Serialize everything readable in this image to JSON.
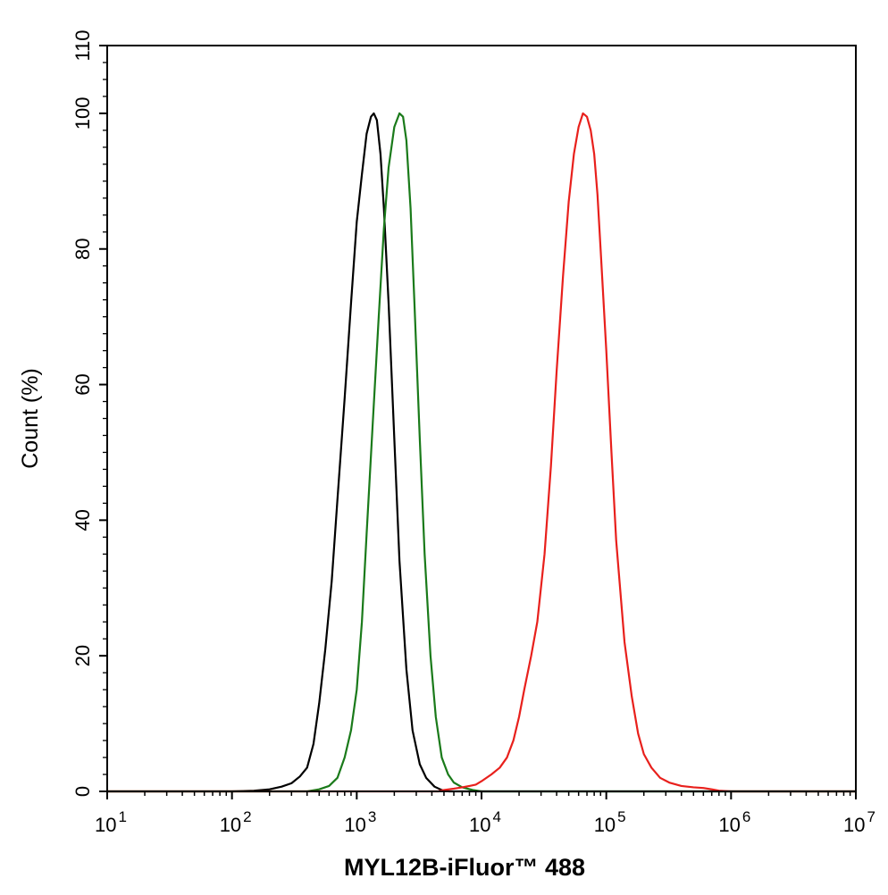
{
  "chart_data": {
    "type": "line",
    "title": "",
    "xlabel": "MYL12B-iFluor™ 488",
    "ylabel": "Count  (%)",
    "xscale": "log",
    "xlim": [
      10,
      10000000
    ],
    "ylim": [
      0,
      110
    ],
    "grid": false,
    "legend": "none",
    "x_ticks": [
      {
        "value": 10,
        "base": "10",
        "exp": "1"
      },
      {
        "value": 100,
        "base": "10",
        "exp": "2"
      },
      {
        "value": 1000,
        "base": "10",
        "exp": "3"
      },
      {
        "value": 10000,
        "base": "10",
        "exp": "4"
      },
      {
        "value": 100000,
        "base": "10",
        "exp": "5"
      },
      {
        "value": 1000000,
        "base": "10",
        "exp": "6"
      },
      {
        "value": 10000000,
        "base": "10",
        "exp": "7"
      }
    ],
    "y_ticks": [
      0,
      20,
      40,
      60,
      80,
      100,
      110
    ],
    "series": [
      {
        "color": "#000000",
        "points": [
          [
            10,
            0
          ],
          [
            100,
            0
          ],
          [
            150,
            0.1
          ],
          [
            200,
            0.3
          ],
          [
            250,
            0.7
          ],
          [
            300,
            1.2
          ],
          [
            350,
            2.2
          ],
          [
            400,
            3.5
          ],
          [
            450,
            7
          ],
          [
            500,
            13
          ],
          [
            560,
            21
          ],
          [
            630,
            31
          ],
          [
            700,
            43
          ],
          [
            800,
            58
          ],
          [
            900,
            72
          ],
          [
            1000,
            84
          ],
          [
            1100,
            91
          ],
          [
            1200,
            97
          ],
          [
            1300,
            99.5
          ],
          [
            1370,
            100
          ],
          [
            1450,
            99
          ],
          [
            1550,
            94
          ],
          [
            1650,
            86
          ],
          [
            1800,
            72
          ],
          [
            2000,
            52
          ],
          [
            2200,
            34
          ],
          [
            2500,
            18
          ],
          [
            2800,
            9
          ],
          [
            3200,
            4
          ],
          [
            3600,
            2
          ],
          [
            4200,
            0.7
          ],
          [
            4800,
            0.2
          ],
          [
            5500,
            0
          ],
          [
            10000000,
            0
          ]
        ]
      },
      {
        "color": "#1a7a1a",
        "points": [
          [
            10,
            0
          ],
          [
            400,
            0
          ],
          [
            500,
            0.3
          ],
          [
            600,
            0.8
          ],
          [
            700,
            2
          ],
          [
            800,
            5
          ],
          [
            900,
            9
          ],
          [
            1000,
            15
          ],
          [
            1100,
            25
          ],
          [
            1200,
            38
          ],
          [
            1350,
            55
          ],
          [
            1500,
            70
          ],
          [
            1650,
            83
          ],
          [
            1800,
            92
          ],
          [
            2000,
            98
          ],
          [
            2200,
            100
          ],
          [
            2350,
            99.5
          ],
          [
            2500,
            96
          ],
          [
            2700,
            86
          ],
          [
            2900,
            72
          ],
          [
            3200,
            52
          ],
          [
            3500,
            35
          ],
          [
            3900,
            20
          ],
          [
            4300,
            11
          ],
          [
            4800,
            5
          ],
          [
            5400,
            2.5
          ],
          [
            6000,
            1.3
          ],
          [
            7000,
            0.6
          ],
          [
            8500,
            0.2
          ],
          [
            10000,
            0
          ],
          [
            10000000,
            0
          ]
        ]
      },
      {
        "color": "#e8201c",
        "points": [
          [
            10,
            0
          ],
          [
            4500,
            0
          ],
          [
            5000,
            0.2
          ],
          [
            6000,
            0.4
          ],
          [
            7000,
            0.6
          ],
          [
            8000,
            0.8
          ],
          [
            9000,
            1.0
          ],
          [
            10000,
            1.5
          ],
          [
            12000,
            2.5
          ],
          [
            14000,
            3.5
          ],
          [
            16000,
            5
          ],
          [
            18000,
            7.5
          ],
          [
            20000,
            11
          ],
          [
            22000,
            15
          ],
          [
            25000,
            20
          ],
          [
            28000,
            25
          ],
          [
            32000,
            35
          ],
          [
            36000,
            48
          ],
          [
            40000,
            62
          ],
          [
            45000,
            76
          ],
          [
            50000,
            87
          ],
          [
            55000,
            94
          ],
          [
            60000,
            98
          ],
          [
            65000,
            100
          ],
          [
            70000,
            99.5
          ],
          [
            75000,
            97.5
          ],
          [
            80000,
            94
          ],
          [
            85000,
            88
          ],
          [
            90000,
            80
          ],
          [
            100000,
            65
          ],
          [
            110000,
            50
          ],
          [
            120000,
            37
          ],
          [
            140000,
            22
          ],
          [
            160000,
            14
          ],
          [
            180000,
            8.5
          ],
          [
            200000,
            5.5
          ],
          [
            230000,
            3.5
          ],
          [
            270000,
            2
          ],
          [
            320000,
            1.3
          ],
          [
            400000,
            0.8
          ],
          [
            500000,
            0.6
          ],
          [
            600000,
            0.5
          ],
          [
            700000,
            0.3
          ],
          [
            800000,
            0.1
          ],
          [
            1000000,
            0
          ],
          [
            10000000,
            0
          ]
        ]
      }
    ]
  }
}
